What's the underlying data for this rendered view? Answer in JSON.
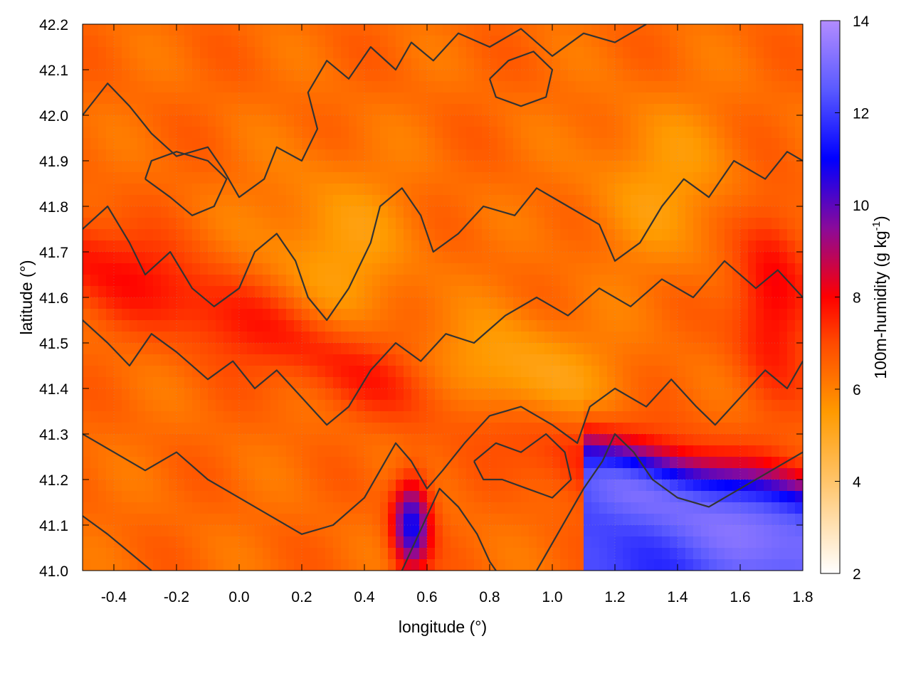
{
  "chart_data": {
    "type": "heatmap",
    "title": "",
    "xlabel": "longitude (°)",
    "ylabel": "latitude (°)",
    "colorbar_label": "100m-humidity (g kg",
    "colorbar_label_sup": "-1",
    "colorbar_label_end": ")",
    "xlim": [
      -0.5,
      1.8
    ],
    "ylim": [
      41.0,
      42.2
    ],
    "clim": [
      2,
      14
    ],
    "x_ticks": [
      -0.4,
      -0.2,
      0.0,
      0.2,
      0.4,
      0.6,
      0.8,
      1.0,
      1.2,
      1.4,
      1.6,
      1.8
    ],
    "x_tick_labels": [
      "-0.4",
      "-0.2",
      "0.0",
      "0.2",
      "0.4",
      "0.6",
      "0.8",
      "1.0",
      "1.2",
      "1.4",
      "1.6",
      "1.8"
    ],
    "y_ticks": [
      41.0,
      41.1,
      41.2,
      41.3,
      41.4,
      41.5,
      41.6,
      41.7,
      41.8,
      41.9,
      42.0,
      42.1,
      42.2
    ],
    "y_tick_labels": [
      "41.0",
      "41.1",
      "41.2",
      "41.3",
      "41.4",
      "41.5",
      "41.6",
      "41.7",
      "41.8",
      "41.9",
      "42.0",
      "42.1",
      "42.2"
    ],
    "colorbar_ticks": [
      2,
      4,
      6,
      8,
      10,
      12,
      14
    ],
    "colorbar_tick_labels": [
      "2",
      "4",
      "6",
      "8",
      "10",
      "12",
      "14"
    ],
    "colormap": [
      {
        "value": 2,
        "color": "#ffffff"
      },
      {
        "value": 4,
        "color": "#ffc46a"
      },
      {
        "value": 5.5,
        "color": "#ff9a00"
      },
      {
        "value": 7,
        "color": "#ff4a00"
      },
      {
        "value": 8,
        "color": "#ff0000"
      },
      {
        "value": 9.5,
        "color": "#8a0a9a"
      },
      {
        "value": 11,
        "color": "#0000ff"
      },
      {
        "value": 12.5,
        "color": "#5a5aff"
      },
      {
        "value": 14,
        "color": "#b28cff"
      }
    ],
    "grid": true,
    "contour_color": "#333333",
    "contour_lines": [
      [
        [
          -0.5,
          42.0
        ],
        [
          -0.42,
          42.07
        ],
        [
          -0.35,
          42.02
        ],
        [
          -0.28,
          41.96
        ],
        [
          -0.2,
          41.91
        ],
        [
          -0.1,
          41.93
        ],
        [
          -0.05,
          41.88
        ],
        [
          0.0,
          41.82
        ],
        [
          0.08,
          41.86
        ],
        [
          0.12,
          41.93
        ],
        [
          0.2,
          41.9
        ],
        [
          0.25,
          41.97
        ],
        [
          0.22,
          42.05
        ],
        [
          0.28,
          42.12
        ],
        [
          0.35,
          42.08
        ],
        [
          0.42,
          42.15
        ],
        [
          0.5,
          42.1
        ],
        [
          0.55,
          42.16
        ],
        [
          0.62,
          42.12
        ],
        [
          0.7,
          42.18
        ],
        [
          0.8,
          42.15
        ],
        [
          0.9,
          42.19
        ],
        [
          1.0,
          42.13
        ],
        [
          1.1,
          42.18
        ],
        [
          1.2,
          42.16
        ],
        [
          1.3,
          42.2
        ]
      ],
      [
        [
          -0.5,
          41.75
        ],
        [
          -0.42,
          41.8
        ],
        [
          -0.35,
          41.72
        ],
        [
          -0.3,
          41.65
        ],
        [
          -0.22,
          41.7
        ],
        [
          -0.15,
          41.62
        ],
        [
          -0.08,
          41.58
        ],
        [
          0.0,
          41.62
        ],
        [
          0.05,
          41.7
        ],
        [
          0.12,
          41.74
        ],
        [
          0.18,
          41.68
        ],
        [
          0.22,
          41.6
        ],
        [
          0.28,
          41.55
        ],
        [
          0.35,
          41.62
        ],
        [
          0.42,
          41.72
        ],
        [
          0.45,
          41.8
        ],
        [
          0.52,
          41.84
        ],
        [
          0.58,
          41.78
        ],
        [
          0.62,
          41.7
        ],
        [
          0.7,
          41.74
        ],
        [
          0.78,
          41.8
        ],
        [
          0.88,
          41.78
        ],
        [
          0.95,
          41.84
        ],
        [
          1.05,
          41.8
        ],
        [
          1.15,
          41.76
        ],
        [
          1.2,
          41.68
        ],
        [
          1.28,
          41.72
        ],
        [
          1.35,
          41.8
        ],
        [
          1.42,
          41.86
        ],
        [
          1.5,
          41.82
        ],
        [
          1.58,
          41.9
        ],
        [
          1.68,
          41.86
        ],
        [
          1.75,
          41.92
        ],
        [
          1.8,
          41.9
        ]
      ],
      [
        [
          -0.5,
          41.55
        ],
        [
          -0.42,
          41.5
        ],
        [
          -0.35,
          41.45
        ],
        [
          -0.28,
          41.52
        ],
        [
          -0.2,
          41.48
        ],
        [
          -0.1,
          41.42
        ],
        [
          -0.02,
          41.46
        ],
        [
          0.05,
          41.4
        ],
        [
          0.12,
          41.44
        ],
        [
          0.2,
          41.38
        ],
        [
          0.28,
          41.32
        ],
        [
          0.35,
          41.36
        ],
        [
          0.42,
          41.44
        ],
        [
          0.5,
          41.5
        ],
        [
          0.58,
          41.46
        ],
        [
          0.66,
          41.52
        ],
        [
          0.75,
          41.5
        ],
        [
          0.85,
          41.56
        ],
        [
          0.95,
          41.6
        ],
        [
          1.05,
          41.56
        ],
        [
          1.15,
          41.62
        ],
        [
          1.25,
          41.58
        ],
        [
          1.35,
          41.64
        ],
        [
          1.45,
          41.6
        ],
        [
          1.55,
          41.68
        ],
        [
          1.65,
          41.62
        ],
        [
          1.72,
          41.66
        ],
        [
          1.8,
          41.6
        ]
      ],
      [
        [
          -0.5,
          41.3
        ],
        [
          -0.4,
          41.26
        ],
        [
          -0.3,
          41.22
        ],
        [
          -0.2,
          41.26
        ],
        [
          -0.1,
          41.2
        ],
        [
          0.0,
          41.16
        ],
        [
          0.1,
          41.12
        ],
        [
          0.2,
          41.08
        ],
        [
          0.3,
          41.1
        ],
        [
          0.4,
          41.16
        ],
        [
          0.45,
          41.22
        ],
        [
          0.5,
          41.28
        ],
        [
          0.55,
          41.24
        ],
        [
          0.6,
          41.18
        ],
        [
          0.65,
          41.22
        ],
        [
          0.72,
          41.28
        ],
        [
          0.8,
          41.34
        ],
        [
          0.9,
          41.36
        ],
        [
          1.0,
          41.32
        ],
        [
          1.08,
          41.28
        ],
        [
          1.12,
          41.36
        ],
        [
          1.2,
          41.4
        ],
        [
          1.3,
          41.36
        ],
        [
          1.38,
          41.42
        ],
        [
          1.46,
          41.36
        ],
        [
          1.52,
          41.32
        ],
        [
          1.6,
          41.38
        ],
        [
          1.68,
          41.44
        ],
        [
          1.75,
          41.4
        ],
        [
          1.8,
          41.46
        ]
      ],
      [
        [
          -0.5,
          41.12
        ],
        [
          -0.42,
          41.08
        ],
        [
          -0.35,
          41.04
        ],
        [
          -0.28,
          41.0
        ]
      ],
      [
        [
          0.52,
          41.0
        ],
        [
          0.56,
          41.06
        ],
        [
          0.6,
          41.12
        ],
        [
          0.64,
          41.18
        ],
        [
          0.7,
          41.14
        ],
        [
          0.76,
          41.08
        ],
        [
          0.8,
          41.02
        ],
        [
          0.82,
          41.0
        ]
      ],
      [
        [
          0.95,
          41.0
        ],
        [
          1.0,
          41.06
        ],
        [
          1.05,
          41.12
        ],
        [
          1.1,
          41.18
        ],
        [
          1.16,
          41.24
        ],
        [
          1.2,
          41.3
        ],
        [
          1.26,
          41.26
        ],
        [
          1.32,
          41.2
        ],
        [
          1.4,
          41.16
        ],
        [
          1.5,
          41.14
        ],
        [
          1.6,
          41.18
        ],
        [
          1.7,
          41.22
        ],
        [
          1.8,
          41.26
        ]
      ],
      [
        [
          0.75,
          41.24
        ],
        [
          0.82,
          41.28
        ],
        [
          0.9,
          41.26
        ],
        [
          0.98,
          41.3
        ],
        [
          1.04,
          41.26
        ],
        [
          1.06,
          41.2
        ],
        [
          1.0,
          41.16
        ],
        [
          0.92,
          41.18
        ],
        [
          0.84,
          41.2
        ],
        [
          0.78,
          41.2
        ],
        [
          0.75,
          41.24
        ]
      ],
      [
        [
          -0.3,
          41.86
        ],
        [
          -0.22,
          41.82
        ],
        [
          -0.15,
          41.78
        ],
        [
          -0.08,
          41.8
        ],
        [
          -0.04,
          41.86
        ],
        [
          -0.1,
          41.9
        ],
        [
          -0.2,
          41.92
        ],
        [
          -0.28,
          41.9
        ],
        [
          -0.3,
          41.86
        ]
      ],
      [
        [
          0.8,
          42.08
        ],
        [
          0.86,
          42.12
        ],
        [
          0.94,
          42.14
        ],
        [
          1.0,
          42.1
        ],
        [
          0.98,
          42.04
        ],
        [
          0.9,
          42.02
        ],
        [
          0.82,
          42.04
        ],
        [
          0.8,
          42.08
        ]
      ]
    ]
  }
}
